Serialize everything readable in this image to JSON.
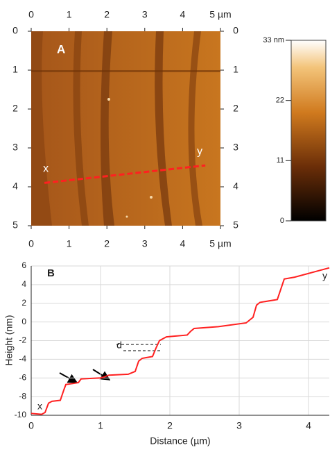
{
  "chart_data": [
    {
      "type": "image",
      "label": "A",
      "xlim": [
        0,
        5
      ],
      "ylim": [
        0,
        5
      ],
      "xticks": [
        0,
        1,
        2,
        3,
        4,
        {
          "value": 5,
          "label": "5 µm"
        }
      ],
      "yticks": [
        0,
        1,
        2,
        3,
        4,
        5
      ],
      "colorbar": {
        "lim": [
          0,
          33
        ],
        "ticks": [
          0,
          11,
          22,
          {
            "value": 33,
            "label": "33 nm"
          }
        ]
      },
      "profile_line": {
        "x": [
          0.35,
          4.6
        ],
        "y": [
          3.9,
          3.45
        ],
        "color": "#ff2020",
        "start_label": "x",
        "end_label": "y"
      }
    },
    {
      "type": "line",
      "label": "B",
      "x_label": "Distance (µm)",
      "y_label": "Height (nm)",
      "xlim": [
        0,
        4.3
      ],
      "ylim": [
        -10,
        6
      ],
      "xticks": [
        0,
        1,
        2,
        3,
        4
      ],
      "yticks": [
        6,
        4,
        2,
        0,
        -2,
        -4,
        -6,
        -8,
        -10
      ],
      "grid": true,
      "series": [
        {
          "color": "#ff2020",
          "x": [
            0,
            0.15,
            0.2,
            0.25,
            0.3,
            0.42,
            0.47,
            0.5,
            0.6,
            0.68,
            0.72,
            1.0,
            1.05,
            1.12,
            1.4,
            1.5,
            1.55,
            1.6,
            1.75,
            1.8,
            1.85,
            1.95,
            2.25,
            2.3,
            2.35,
            2.7,
            3.1,
            3.2,
            3.25,
            3.3,
            3.55,
            3.6,
            3.65,
            3.8,
            4.3
          ],
          "values": [
            -9.8,
            -9.9,
            -9.7,
            -8.7,
            -8.5,
            -8.4,
            -7.3,
            -6.7,
            -6.6,
            -6.5,
            -6.1,
            -6.0,
            -5.9,
            -5.7,
            -5.6,
            -5.3,
            -4.2,
            -3.9,
            -3.7,
            -2.8,
            -2.0,
            -1.6,
            -1.4,
            -1.0,
            -0.7,
            -0.5,
            -0.1,
            0.5,
            1.8,
            2.1,
            2.4,
            3.5,
            4.6,
            4.8,
            5.8
          ]
        }
      ],
      "annotations": {
        "start": "x",
        "end": "y",
        "step": "d"
      }
    }
  ]
}
